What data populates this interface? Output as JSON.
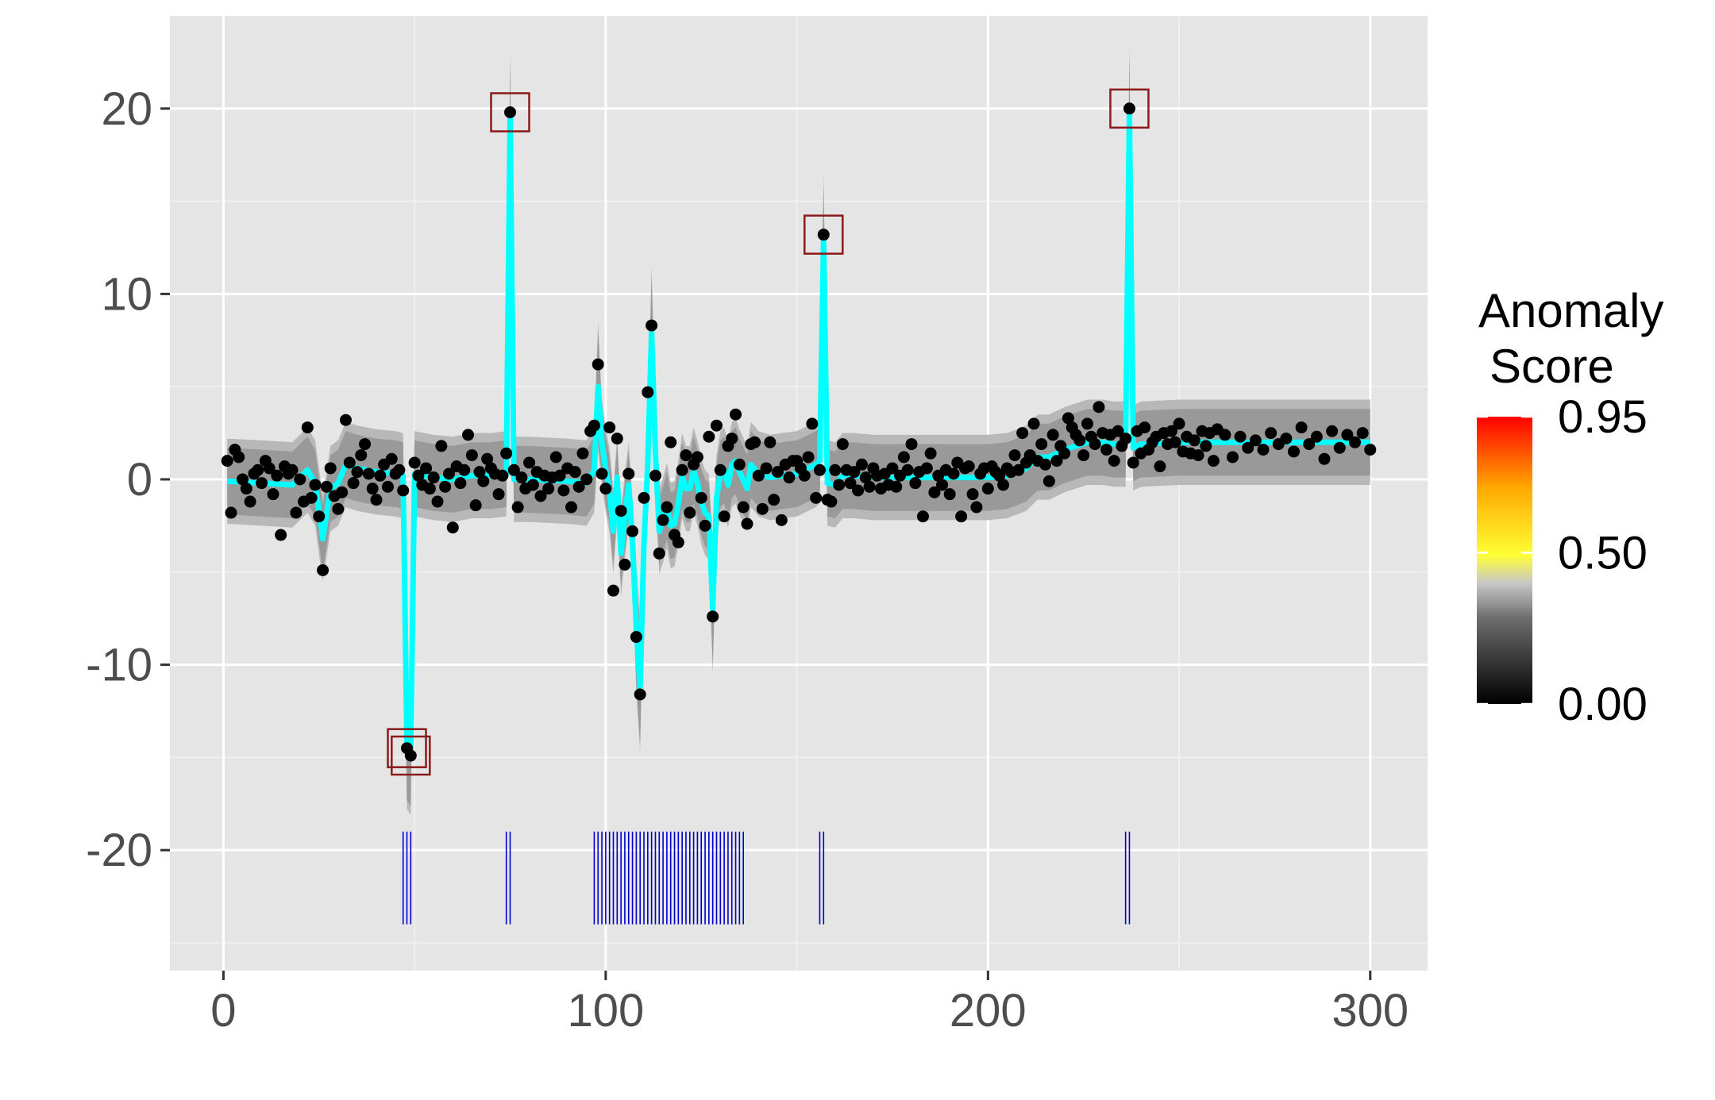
{
  "chart_data": {
    "type": "scatter",
    "xlim": [
      -14,
      315
    ],
    "ylim": [
      -26.5,
      25
    ],
    "x_ticks": [
      0,
      100,
      200,
      300
    ],
    "y_ticks": [
      -20,
      -10,
      0,
      10,
      20
    ],
    "x_tick_labels": [
      "0",
      "100",
      "200",
      "300"
    ],
    "y_tick_labels": [
      "-20",
      "-10",
      "0",
      "10",
      "20"
    ],
    "grid": true,
    "background": "#e5e5e5",
    "legend": {
      "title_lines": [
        "Anomaly",
        "Score"
      ],
      "labels": [
        "0.95",
        "0.50",
        "0.00"
      ],
      "values": [
        0.95,
        0.5,
        0.0
      ],
      "range": [
        0,
        0.95
      ],
      "placement": "right",
      "colors": [
        "#000000",
        "#555555",
        "#c8c8c8",
        "#ffff33",
        "#ffaa00",
        "#ff0000"
      ]
    },
    "colors": {
      "points": "#000000",
      "fit_line": "#00ffff",
      "band_outer": "#b3b3b3",
      "band_inner": "#999999",
      "anomaly_box": "#8b1a1a",
      "rug": "#0000cc"
    },
    "points": [
      [
        1,
        1.0
      ],
      [
        2,
        -1.8
      ],
      [
        3,
        1.6
      ],
      [
        4,
        1.2
      ],
      [
        5,
        0.0
      ],
      [
        6,
        -0.5
      ],
      [
        7,
        -1.2
      ],
      [
        8,
        0.3
      ],
      [
        9,
        0.5
      ],
      [
        10,
        -0.2
      ],
      [
        11,
        1.0
      ],
      [
        12,
        0.6
      ],
      [
        13,
        -0.8
      ],
      [
        14,
        0.2
      ],
      [
        15,
        -3.0
      ],
      [
        16,
        0.7
      ],
      [
        17,
        0.3
      ],
      [
        18,
        0.5
      ],
      [
        19,
        -1.8
      ],
      [
        20,
        0.0
      ],
      [
        21,
        -1.2
      ],
      [
        22,
        2.8
      ],
      [
        23,
        -1.0
      ],
      [
        24,
        -0.3
      ],
      [
        25,
        -2.0
      ],
      [
        26,
        -4.9
      ],
      [
        27,
        -0.4
      ],
      [
        28,
        0.6
      ],
      [
        29,
        -0.9
      ],
      [
        30,
        -1.6
      ],
      [
        31,
        -0.7
      ],
      [
        32,
        3.2
      ],
      [
        33,
        0.9
      ],
      [
        34,
        -0.2
      ],
      [
        35,
        0.4
      ],
      [
        36,
        1.3
      ],
      [
        37,
        1.9
      ],
      [
        38,
        0.3
      ],
      [
        39,
        -0.5
      ],
      [
        40,
        -1.1
      ],
      [
        41,
        0.2
      ],
      [
        42,
        0.8
      ],
      [
        43,
        -0.4
      ],
      [
        44,
        1.1
      ],
      [
        45,
        0.3
      ],
      [
        46,
        0.5
      ],
      [
        47,
        -0.6
      ],
      [
        48,
        -14.5
      ],
      [
        49,
        -14.9
      ],
      [
        50,
        0.9
      ],
      [
        51,
        0.2
      ],
      [
        52,
        -0.3
      ],
      [
        53,
        0.6
      ],
      [
        54,
        -0.5
      ],
      [
        55,
        0.1
      ],
      [
        56,
        -1.2
      ],
      [
        57,
        1.8
      ],
      [
        58,
        -0.4
      ],
      [
        59,
        0.3
      ],
      [
        60,
        -2.6
      ],
      [
        61,
        0.7
      ],
      [
        62,
        -0.2
      ],
      [
        63,
        0.5
      ],
      [
        64,
        2.4
      ],
      [
        65,
        1.3
      ],
      [
        66,
        -1.4
      ],
      [
        67,
        0.4
      ],
      [
        68,
        -0.1
      ],
      [
        69,
        1.1
      ],
      [
        70,
        0.6
      ],
      [
        71,
        0.3
      ],
      [
        72,
        -0.8
      ],
      [
        73,
        0.2
      ],
      [
        74,
        1.4
      ],
      [
        75,
        19.8
      ],
      [
        76,
        0.5
      ],
      [
        77,
        -1.5
      ],
      [
        78,
        0.1
      ],
      [
        79,
        -0.5
      ],
      [
        80,
        0.9
      ],
      [
        81,
        -0.3
      ],
      [
        82,
        0.4
      ],
      [
        83,
        -0.9
      ],
      [
        84,
        0.2
      ],
      [
        85,
        -0.5
      ],
      [
        86,
        0.1
      ],
      [
        87,
        1.2
      ],
      [
        88,
        0.2
      ],
      [
        89,
        -0.6
      ],
      [
        90,
        0.6
      ],
      [
        91,
        -1.5
      ],
      [
        92,
        0.4
      ],
      [
        93,
        -0.4
      ],
      [
        94,
        1.4
      ],
      [
        95,
        0.0
      ],
      [
        96,
        2.6
      ],
      [
        97,
        2.9
      ],
      [
        98,
        6.2
      ],
      [
        99,
        0.3
      ],
      [
        100,
        -0.5
      ],
      [
        101,
        2.8
      ],
      [
        102,
        -6.0
      ],
      [
        103,
        2.2
      ],
      [
        104,
        -1.7
      ],
      [
        105,
        -4.6
      ],
      [
        106,
        0.3
      ],
      [
        107,
        -2.8
      ],
      [
        108,
        -8.5
      ],
      [
        109,
        -11.6
      ],
      [
        110,
        -1.0
      ],
      [
        111,
        4.7
      ],
      [
        112,
        8.3
      ],
      [
        113,
        0.2
      ],
      [
        114,
        -4.0
      ],
      [
        115,
        -2.2
      ],
      [
        116,
        -1.5
      ],
      [
        117,
        2.0
      ],
      [
        118,
        -3.0
      ],
      [
        119,
        -3.4
      ],
      [
        120,
        0.5
      ],
      [
        121,
        1.3
      ],
      [
        122,
        -1.8
      ],
      [
        123,
        0.8
      ],
      [
        124,
        1.2
      ],
      [
        125,
        -1.0
      ],
      [
        126,
        -2.5
      ],
      [
        127,
        2.3
      ],
      [
        128,
        -7.4
      ],
      [
        129,
        2.9
      ],
      [
        130,
        0.5
      ],
      [
        131,
        -2.0
      ],
      [
        132,
        1.8
      ],
      [
        133,
        2.2
      ],
      [
        134,
        3.5
      ],
      [
        135,
        0.8
      ],
      [
        136,
        -1.5
      ],
      [
        137,
        -2.4
      ],
      [
        138,
        1.9
      ],
      [
        139,
        2.0
      ],
      [
        140,
        0.2
      ],
      [
        141,
        -1.6
      ],
      [
        142,
        0.6
      ],
      [
        143,
        2.0
      ],
      [
        144,
        -1.1
      ],
      [
        145,
        0.4
      ],
      [
        146,
        -2.2
      ],
      [
        147,
        0.8
      ],
      [
        148,
        0.1
      ],
      [
        149,
        1.0
      ],
      [
        150,
        1.0
      ],
      [
        151,
        0.6
      ],
      [
        152,
        0.2
      ],
      [
        153,
        1.2
      ],
      [
        154,
        3.0
      ],
      [
        155,
        -1.0
      ],
      [
        156,
        0.5
      ],
      [
        157,
        13.2
      ],
      [
        158,
        -1.1
      ],
      [
        159,
        -1.2
      ],
      [
        160,
        0.5
      ],
      [
        161,
        -0.3
      ],
      [
        162,
        1.9
      ],
      [
        163,
        0.5
      ],
      [
        164,
        -0.2
      ],
      [
        165,
        0.4
      ],
      [
        166,
        -0.6
      ],
      [
        167,
        0.8
      ],
      [
        168,
        0.1
      ],
      [
        169,
        -0.4
      ],
      [
        170,
        0.6
      ],
      [
        171,
        0.2
      ],
      [
        172,
        -0.5
      ],
      [
        173,
        0.3
      ],
      [
        174,
        -0.3
      ],
      [
        175,
        0.6
      ],
      [
        176,
        -0.4
      ],
      [
        177,
        0.2
      ],
      [
        178,
        1.2
      ],
      [
        179,
        0.5
      ],
      [
        180,
        1.9
      ],
      [
        181,
        -0.2
      ],
      [
        182,
        0.4
      ],
      [
        183,
        -2.0
      ],
      [
        184,
        0.6
      ],
      [
        185,
        1.4
      ],
      [
        186,
        -0.7
      ],
      [
        187,
        0.2
      ],
      [
        188,
        -0.3
      ],
      [
        189,
        0.5
      ],
      [
        190,
        -0.8
      ],
      [
        191,
        0.3
      ],
      [
        192,
        0.9
      ],
      [
        193,
        -2.0
      ],
      [
        194,
        0.6
      ],
      [
        195,
        0.7
      ],
      [
        196,
        -0.8
      ],
      [
        197,
        -1.5
      ],
      [
        198,
        0.3
      ],
      [
        199,
        0.6
      ],
      [
        200,
        -0.5
      ],
      [
        201,
        0.7
      ],
      [
        202,
        0.4
      ],
      [
        203,
        0.2
      ],
      [
        204,
        -0.3
      ],
      [
        205,
        0.6
      ],
      [
        206,
        0.4
      ],
      [
        207,
        1.3
      ],
      [
        208,
        0.5
      ],
      [
        209,
        2.5
      ],
      [
        210,
        0.9
      ],
      [
        211,
        1.3
      ],
      [
        212,
        3.0
      ],
      [
        213,
        1.0
      ],
      [
        214,
        1.9
      ],
      [
        215,
        0.8
      ],
      [
        216,
        -0.1
      ],
      [
        217,
        2.4
      ],
      [
        218,
        1.0
      ],
      [
        219,
        1.8
      ],
      [
        220,
        1.4
      ],
      [
        221,
        3.3
      ],
      [
        222,
        2.8
      ],
      [
        223,
        2.4
      ],
      [
        224,
        2.1
      ],
      [
        225,
        1.3
      ],
      [
        226,
        3.0
      ],
      [
        227,
        2.3
      ],
      [
        228,
        1.9
      ],
      [
        229,
        3.9
      ],
      [
        230,
        2.5
      ],
      [
        231,
        1.6
      ],
      [
        232,
        2.4
      ],
      [
        233,
        1.0
      ],
      [
        234,
        2.6
      ],
      [
        235,
        1.8
      ],
      [
        236,
        2.2
      ],
      [
        237,
        20.0
      ],
      [
        238,
        0.9
      ],
      [
        239,
        2.6
      ],
      [
        240,
        1.4
      ],
      [
        241,
        2.8
      ],
      [
        242,
        1.6
      ],
      [
        243,
        2.0
      ],
      [
        244,
        2.3
      ],
      [
        245,
        0.7
      ],
      [
        246,
        2.5
      ],
      [
        247,
        1.9
      ],
      [
        248,
        2.6
      ],
      [
        249,
        2.0
      ],
      [
        250,
        3.0
      ],
      [
        251,
        1.5
      ],
      [
        252,
        2.3
      ],
      [
        253,
        1.4
      ],
      [
        254,
        2.1
      ],
      [
        255,
        1.3
      ],
      [
        256,
        2.6
      ],
      [
        257,
        1.8
      ],
      [
        258,
        2.5
      ],
      [
        259,
        1.0
      ],
      [
        260,
        2.7
      ],
      [
        262,
        2.4
      ],
      [
        264,
        1.2
      ],
      [
        266,
        2.3
      ],
      [
        268,
        1.7
      ],
      [
        270,
        2.1
      ],
      [
        272,
        1.6
      ],
      [
        274,
        2.5
      ],
      [
        276,
        1.9
      ],
      [
        278,
        2.2
      ],
      [
        280,
        1.5
      ],
      [
        282,
        2.8
      ],
      [
        284,
        1.9
      ],
      [
        286,
        2.3
      ],
      [
        288,
        1.1
      ],
      [
        290,
        2.6
      ],
      [
        292,
        1.7
      ],
      [
        294,
        2.4
      ],
      [
        296,
        2.0
      ],
      [
        298,
        2.5
      ],
      [
        300,
        1.6
      ]
    ],
    "fit_line": [
      [
        1,
        -0.1
      ],
      [
        10,
        -0.2
      ],
      [
        18,
        -0.3
      ],
      [
        22,
        0.5
      ],
      [
        24,
        -0.2
      ],
      [
        26,
        -3.2
      ],
      [
        28,
        -0.5
      ],
      [
        30,
        -0.2
      ],
      [
        32,
        0.8
      ],
      [
        35,
        0.6
      ],
      [
        40,
        0.4
      ],
      [
        45,
        0.3
      ],
      [
        47,
        0.2
      ],
      [
        48,
        -14.3
      ],
      [
        49,
        -14.6
      ],
      [
        50,
        0.3
      ],
      [
        55,
        0.1
      ],
      [
        60,
        0.0
      ],
      [
        65,
        0.2
      ],
      [
        70,
        0.2
      ],
      [
        74,
        0.3
      ],
      [
        75,
        19.6
      ],
      [
        76,
        0.0
      ],
      [
        80,
        0.0
      ],
      [
        90,
        -0.1
      ],
      [
        95,
        -0.2
      ],
      [
        97,
        0.5
      ],
      [
        98,
        5.0
      ],
      [
        99,
        2.0
      ],
      [
        100,
        0.5
      ],
      [
        101,
        -0.6
      ],
      [
        102,
        -2.8
      ],
      [
        103,
        0.1
      ],
      [
        104,
        -4.0
      ],
      [
        105,
        -2.0
      ],
      [
        106,
        -0.3
      ],
      [
        107,
        -3.3
      ],
      [
        108,
        -8.0
      ],
      [
        109,
        -11.2
      ],
      [
        110,
        -3.5
      ],
      [
        111,
        0.8
      ],
      [
        112,
        8.0
      ],
      [
        113,
        1.5
      ],
      [
        114,
        -2.8
      ],
      [
        115,
        -2.2
      ],
      [
        116,
        -1.4
      ],
      [
        117,
        -2.5
      ],
      [
        118,
        -2.4
      ],
      [
        119,
        -1.3
      ],
      [
        120,
        0.2
      ],
      [
        121,
        -0.5
      ],
      [
        122,
        -0.5
      ],
      [
        123,
        0.5
      ],
      [
        124,
        -0.2
      ],
      [
        125,
        -1.2
      ],
      [
        126,
        -1.8
      ],
      [
        127,
        -2.0
      ],
      [
        128,
        -7.0
      ],
      [
        129,
        -1.0
      ],
      [
        130,
        0.3
      ],
      [
        131,
        0.5
      ],
      [
        132,
        -0.3
      ],
      [
        133,
        0.8
      ],
      [
        134,
        1.0
      ],
      [
        135,
        0.4
      ],
      [
        137,
        -0.5
      ],
      [
        138,
        0.8
      ],
      [
        140,
        0.3
      ],
      [
        143,
        0.1
      ],
      [
        146,
        0.2
      ],
      [
        150,
        0.3
      ],
      [
        153,
        0.6
      ],
      [
        155,
        0.8
      ],
      [
        156,
        1.0
      ],
      [
        157,
        13.0
      ],
      [
        158,
        -0.2
      ],
      [
        160,
        -0.3
      ],
      [
        162,
        0.2
      ],
      [
        165,
        0.2
      ],
      [
        170,
        0.1
      ],
      [
        180,
        0.1
      ],
      [
        190,
        0.1
      ],
      [
        200,
        0.1
      ],
      [
        205,
        0.2
      ],
      [
        210,
        0.6
      ],
      [
        213,
        1.2
      ],
      [
        216,
        1.2
      ],
      [
        220,
        1.6
      ],
      [
        223,
        1.8
      ],
      [
        226,
        2.0
      ],
      [
        230,
        2.0
      ],
      [
        233,
        1.9
      ],
      [
        236,
        1.9
      ],
      [
        237,
        19.8
      ],
      [
        238,
        1.7
      ],
      [
        240,
        1.9
      ],
      [
        250,
        2.0
      ],
      [
        260,
        2.0
      ],
      [
        270,
        2.0
      ],
      [
        280,
        2.0
      ],
      [
        290,
        2.0
      ],
      [
        300,
        2.0
      ]
    ],
    "band_half_width": 1.8,
    "band_half_width_outer": 2.3,
    "anomaly_boxes": [
      [
        48,
        -14.5
      ],
      [
        49,
        -14.9
      ],
      [
        75,
        19.8
      ],
      [
        157,
        13.2
      ],
      [
        237,
        20.0
      ]
    ],
    "rug_x": [
      47,
      48,
      49,
      74,
      75,
      97,
      98,
      99,
      100,
      101,
      102,
      103,
      104,
      105,
      106,
      107,
      108,
      109,
      110,
      111,
      112,
      113,
      114,
      115,
      116,
      117,
      118,
      119,
      120,
      121,
      122,
      123,
      124,
      125,
      126,
      127,
      128,
      129,
      130,
      131,
      132,
      133,
      134,
      135,
      136,
      156,
      157,
      236,
      237
    ]
  }
}
